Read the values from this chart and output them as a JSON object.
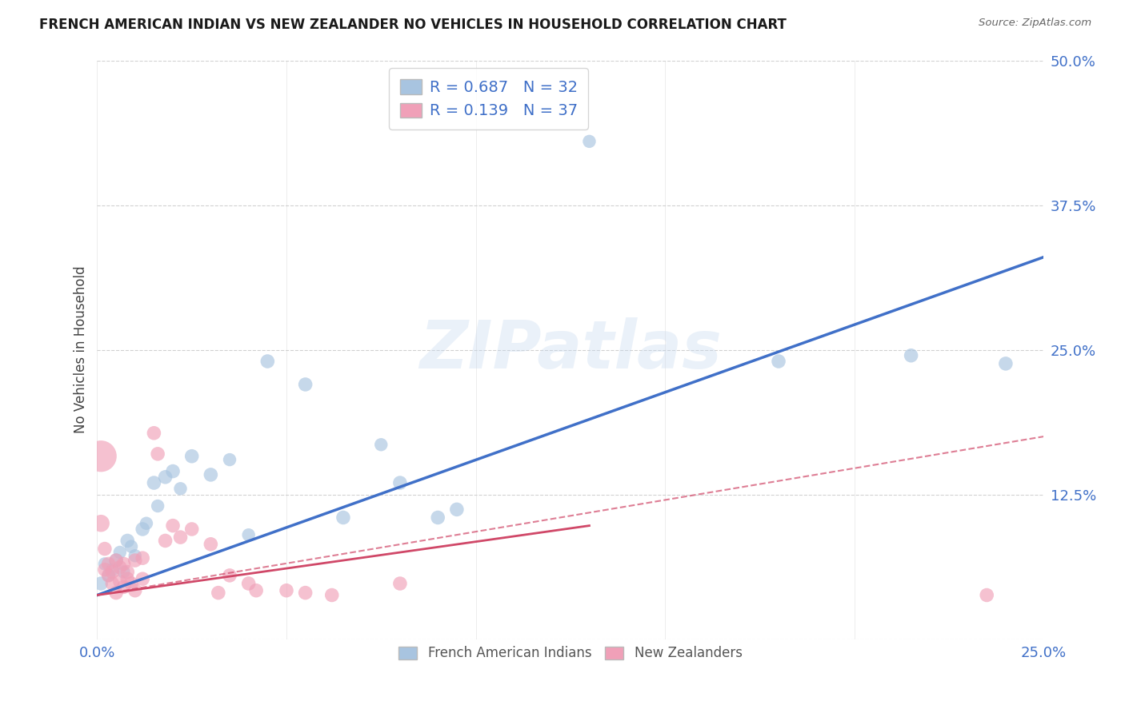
{
  "title": "FRENCH AMERICAN INDIAN VS NEW ZEALANDER NO VEHICLES IN HOUSEHOLD CORRELATION CHART",
  "source": "Source: ZipAtlas.com",
  "ylabel": "No Vehicles in Household",
  "xlim": [
    0.0,
    0.25
  ],
  "ylim": [
    0.0,
    0.5
  ],
  "yticks": [
    0.0,
    0.125,
    0.25,
    0.375,
    0.5
  ],
  "ytick_labels": [
    "",
    "12.5%",
    "25.0%",
    "37.5%",
    "50.0%"
  ],
  "xticks": [
    0.0,
    0.05,
    0.1,
    0.15,
    0.2,
    0.25
  ],
  "xtick_labels": [
    "0.0%",
    "",
    "",
    "",
    "",
    "25.0%"
  ],
  "legend_label1": "French American Indians",
  "legend_label2": "New Zealanders",
  "R1": 0.687,
  "N1": 32,
  "R2": 0.139,
  "N2": 37,
  "color_blue": "#a8c4e0",
  "color_pink": "#f0a0b8",
  "line_color_blue": "#4070c8",
  "line_color_pink": "#d04868",
  "tick_color": "#4070c8",
  "background_color": "#ffffff",
  "watermark_text": "ZIPatlas",
  "blue_line": [
    [
      0.0,
      0.038
    ],
    [
      0.25,
      0.33
    ]
  ],
  "pink_solid_line": [
    [
      0.0,
      0.038
    ],
    [
      0.13,
      0.098
    ]
  ],
  "pink_dashed_line": [
    [
      0.0,
      0.038
    ],
    [
      0.25,
      0.175
    ]
  ],
  "blue_points": [
    [
      0.001,
      0.048
    ],
    [
      0.002,
      0.065
    ],
    [
      0.003,
      0.055
    ],
    [
      0.004,
      0.06
    ],
    [
      0.005,
      0.068
    ],
    [
      0.006,
      0.075
    ],
    [
      0.007,
      0.058
    ],
    [
      0.008,
      0.085
    ],
    [
      0.009,
      0.08
    ],
    [
      0.01,
      0.072
    ],
    [
      0.012,
      0.095
    ],
    [
      0.013,
      0.1
    ],
    [
      0.015,
      0.135
    ],
    [
      0.016,
      0.115
    ],
    [
      0.018,
      0.14
    ],
    [
      0.02,
      0.145
    ],
    [
      0.022,
      0.13
    ],
    [
      0.025,
      0.158
    ],
    [
      0.03,
      0.142
    ],
    [
      0.035,
      0.155
    ],
    [
      0.04,
      0.09
    ],
    [
      0.045,
      0.24
    ],
    [
      0.055,
      0.22
    ],
    [
      0.065,
      0.105
    ],
    [
      0.075,
      0.168
    ],
    [
      0.08,
      0.135
    ],
    [
      0.09,
      0.105
    ],
    [
      0.095,
      0.112
    ],
    [
      0.13,
      0.43
    ],
    [
      0.18,
      0.24
    ],
    [
      0.215,
      0.245
    ],
    [
      0.24,
      0.238
    ]
  ],
  "blue_sizes": [
    80,
    70,
    70,
    70,
    80,
    70,
    70,
    80,
    70,
    70,
    80,
    70,
    80,
    70,
    80,
    80,
    70,
    80,
    80,
    70,
    70,
    80,
    80,
    80,
    70,
    80,
    80,
    80,
    70,
    80,
    80,
    80
  ],
  "pink_points": [
    [
      0.001,
      0.158
    ],
    [
      0.001,
      0.1
    ],
    [
      0.002,
      0.078
    ],
    [
      0.002,
      0.06
    ],
    [
      0.003,
      0.065
    ],
    [
      0.003,
      0.055
    ],
    [
      0.004,
      0.058
    ],
    [
      0.004,
      0.048
    ],
    [
      0.005,
      0.068
    ],
    [
      0.005,
      0.04
    ],
    [
      0.006,
      0.062
    ],
    [
      0.006,
      0.05
    ],
    [
      0.007,
      0.065
    ],
    [
      0.007,
      0.045
    ],
    [
      0.008,
      0.058
    ],
    [
      0.008,
      0.052
    ],
    [
      0.009,
      0.048
    ],
    [
      0.01,
      0.068
    ],
    [
      0.01,
      0.042
    ],
    [
      0.012,
      0.07
    ],
    [
      0.012,
      0.052
    ],
    [
      0.015,
      0.178
    ],
    [
      0.016,
      0.16
    ],
    [
      0.018,
      0.085
    ],
    [
      0.02,
      0.098
    ],
    [
      0.022,
      0.088
    ],
    [
      0.025,
      0.095
    ],
    [
      0.03,
      0.082
    ],
    [
      0.032,
      0.04
    ],
    [
      0.035,
      0.055
    ],
    [
      0.04,
      0.048
    ],
    [
      0.042,
      0.042
    ],
    [
      0.05,
      0.042
    ],
    [
      0.055,
      0.04
    ],
    [
      0.062,
      0.038
    ],
    [
      0.08,
      0.048
    ],
    [
      0.235,
      0.038
    ]
  ],
  "pink_sizes": [
    400,
    120,
    80,
    80,
    80,
    80,
    80,
    80,
    80,
    80,
    80,
    80,
    80,
    80,
    80,
    80,
    80,
    80,
    80,
    80,
    80,
    80,
    80,
    80,
    80,
    80,
    80,
    80,
    80,
    80,
    80,
    80,
    80,
    80,
    80,
    80,
    80
  ]
}
